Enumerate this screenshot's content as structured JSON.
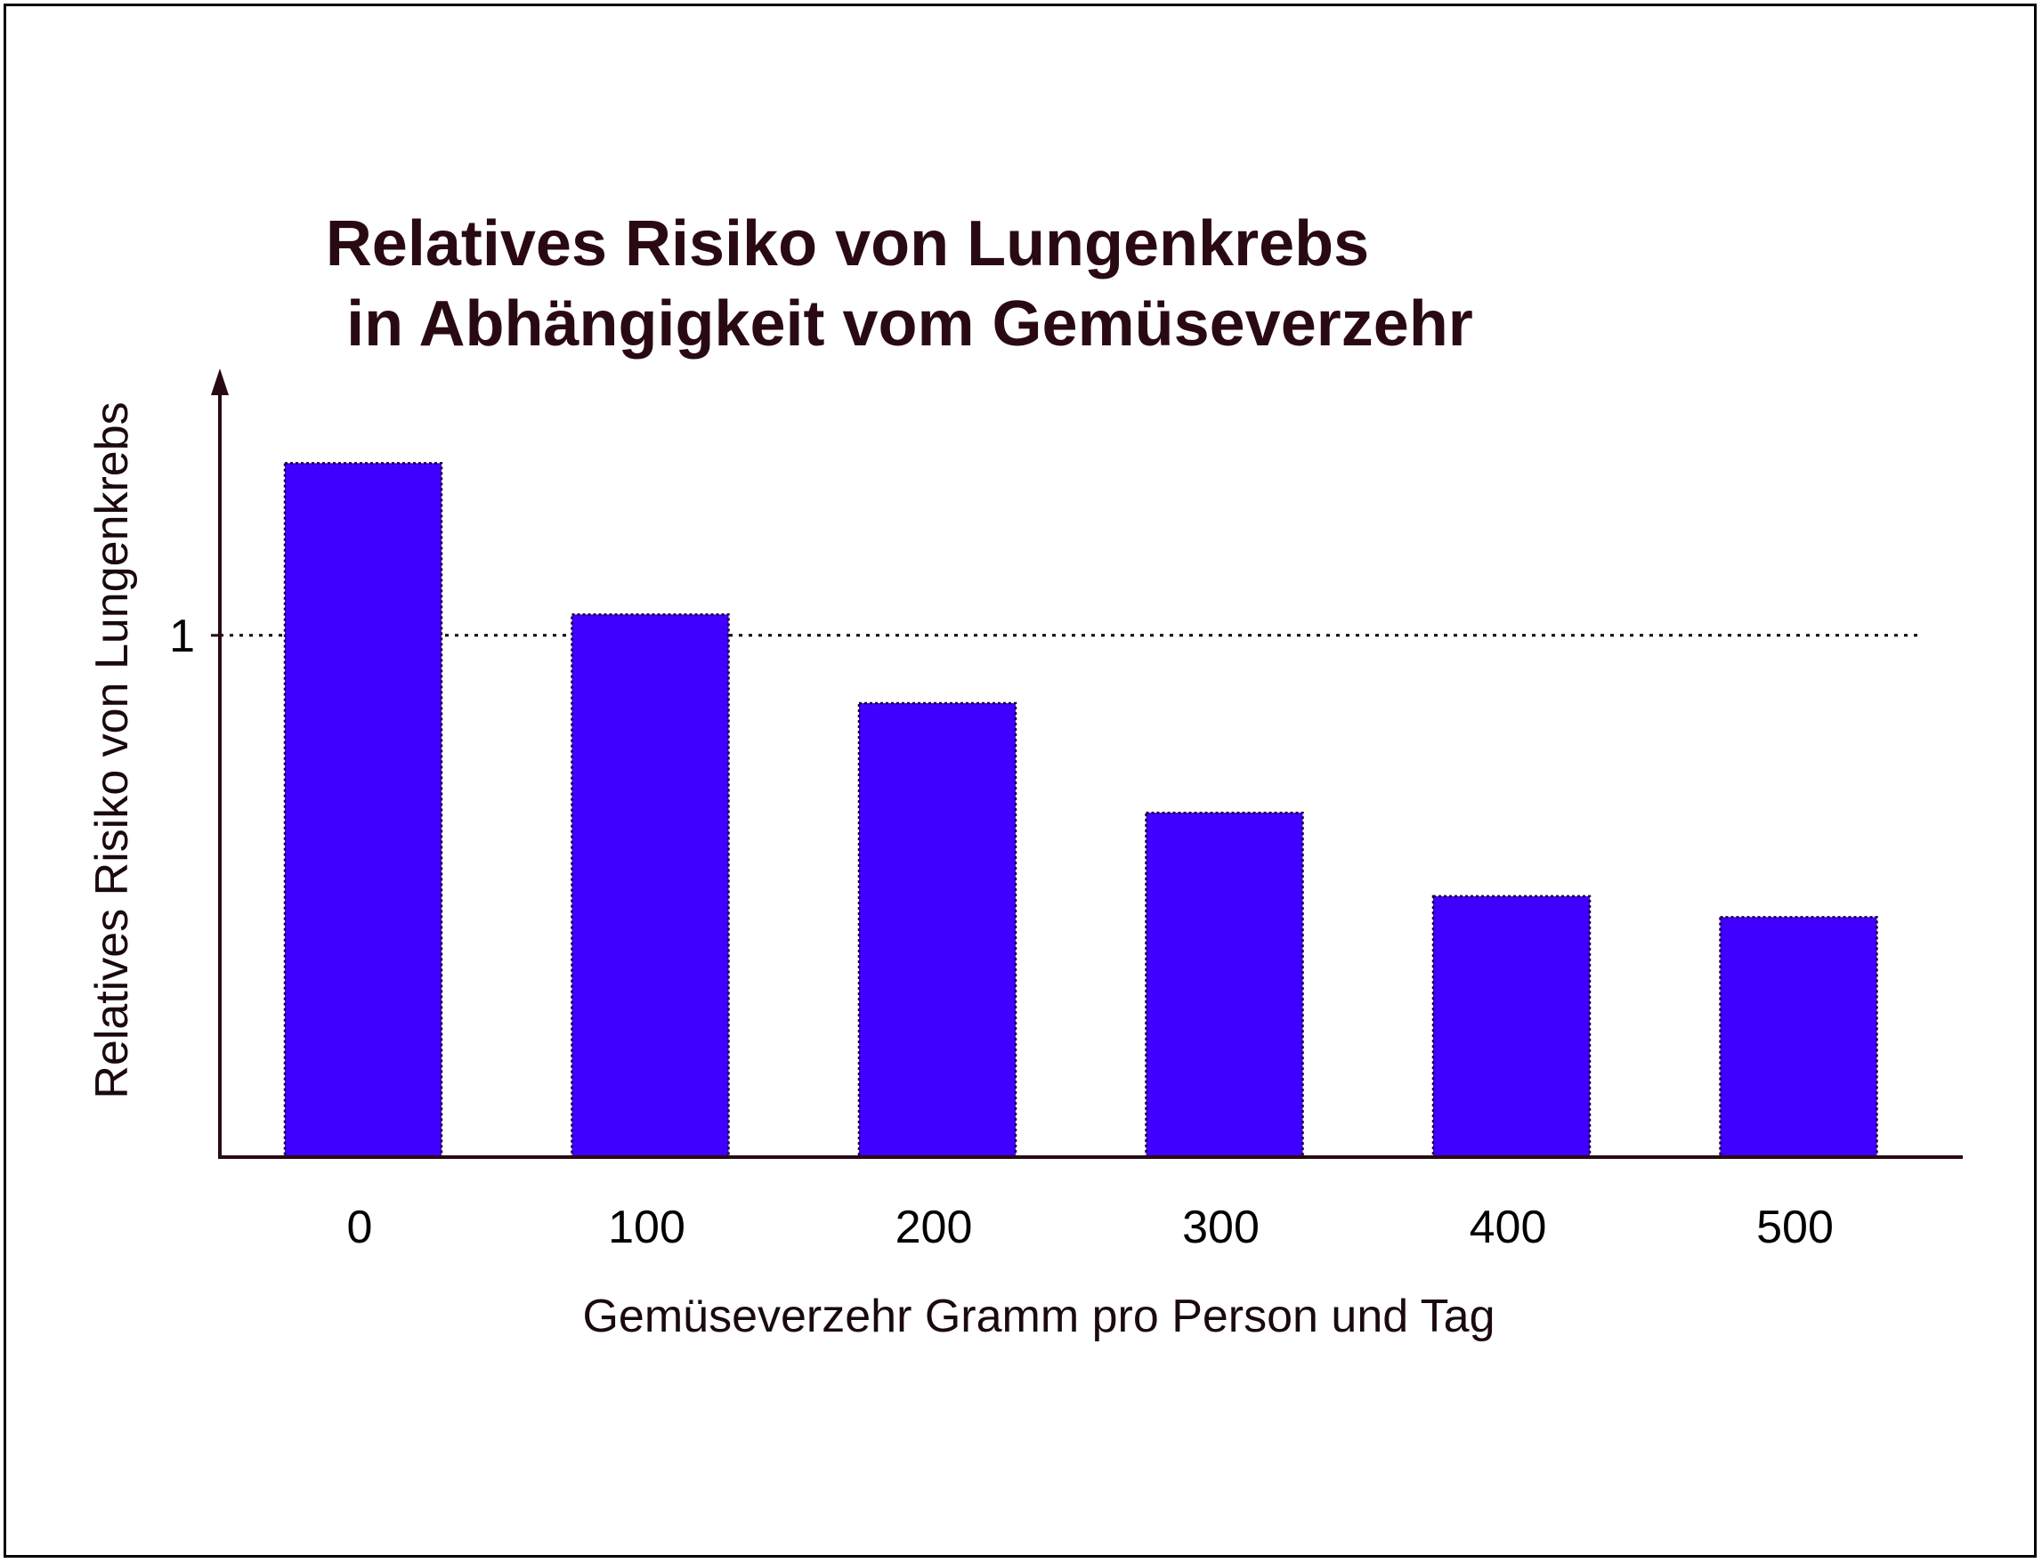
{
  "chart_data": {
    "type": "bar",
    "title_lines": [
      "Relatives Risiko von Lungenkrebs",
      "in Abhängigkeit vom Gemüseverzehr"
    ],
    "xlabel": "Gemüseverzehr Gramm pro Person und Tag",
    "ylabel": "Relatives Risiko von Lungenkrebs",
    "categories": [
      "0",
      "100",
      "200",
      "300",
      "400",
      "500"
    ],
    "values": [
      1.33,
      1.04,
      0.87,
      0.66,
      0.5,
      0.46
    ],
    "ylim": [
      0,
      1.45
    ],
    "y_ticks": [
      {
        "value": 1,
        "label": "1"
      }
    ],
    "reference_line": {
      "value": 1,
      "style": "dotted"
    },
    "grid": false,
    "colors": {
      "bar_fill": "#4000ff",
      "bar_edge": "#1a0033",
      "axis": "#2a0a12",
      "text": "#000000"
    }
  }
}
